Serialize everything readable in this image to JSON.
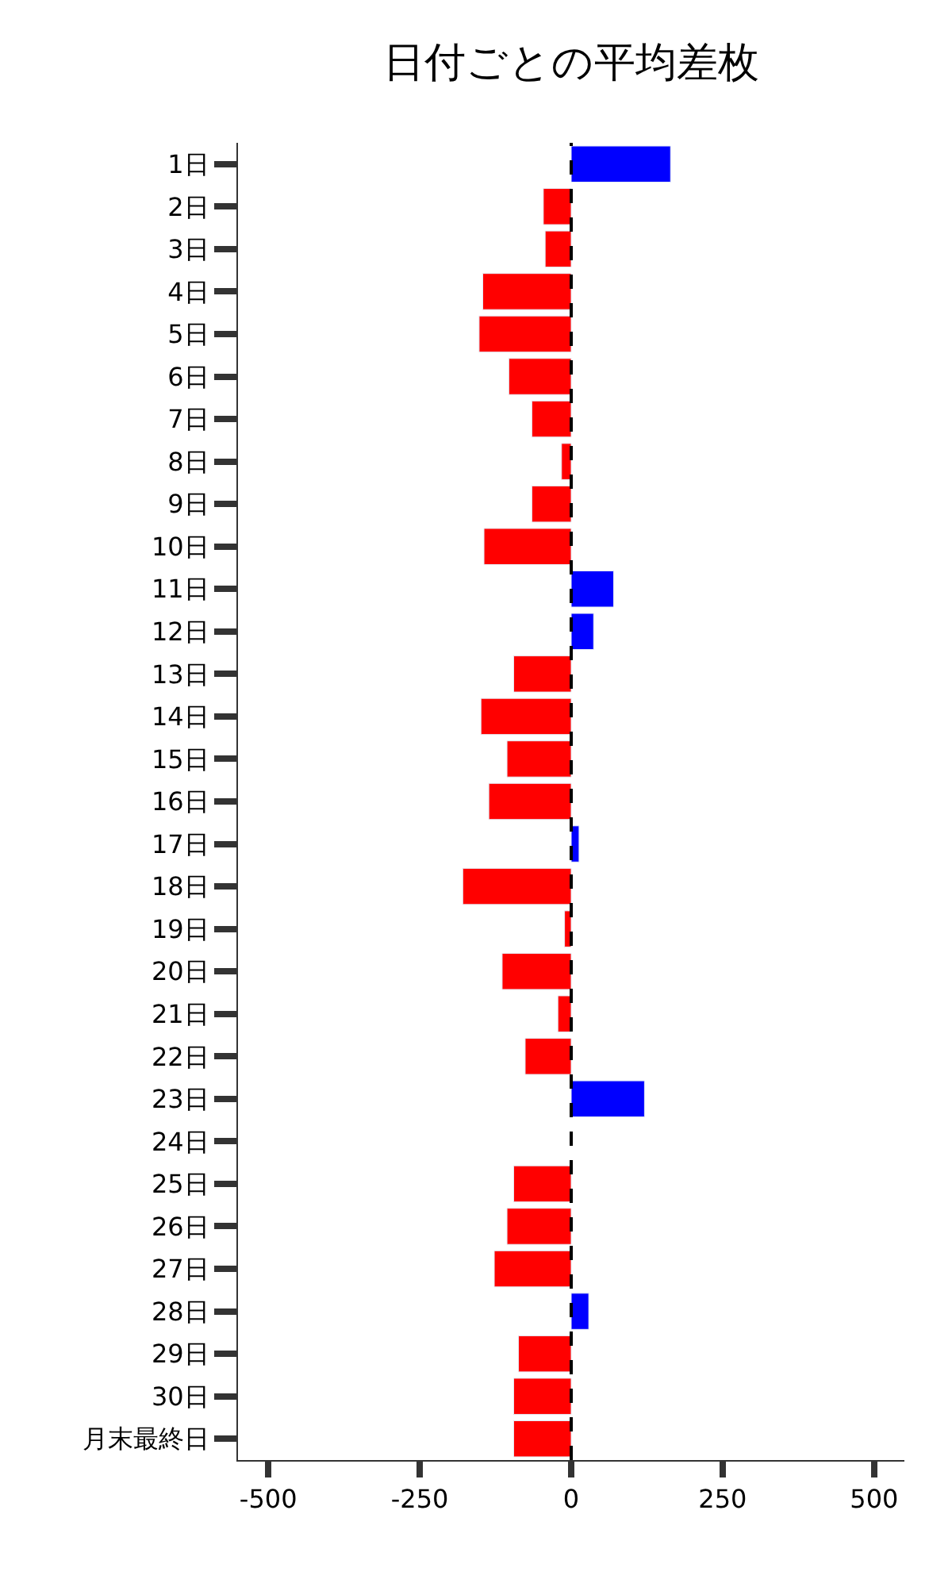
{
  "chart_data": {
    "type": "bar",
    "orientation": "horizontal",
    "title": "日付ごとの平均差枚",
    "categories": [
      "1日",
      "2日",
      "3日",
      "4日",
      "5日",
      "6日",
      "7日",
      "8日",
      "9日",
      "10日",
      "11日",
      "12日",
      "13日",
      "14日",
      "15日",
      "16日",
      "17日",
      "18日",
      "19日",
      "20日",
      "21日",
      "22日",
      "23日",
      "24日",
      "25日",
      "26日",
      "27日",
      "28日",
      "29日",
      "30日",
      "月末最終日"
    ],
    "values": [
      164,
      -46,
      -43,
      -146,
      -152,
      -103,
      -65,
      -16,
      -65,
      -144,
      70,
      37,
      -95,
      -149,
      -106,
      -136,
      13,
      -179,
      -11,
      -114,
      -22,
      -76,
      121,
      null,
      -95,
      -106,
      -127,
      29,
      -87,
      -95,
      -95
    ],
    "colors": [
      "#0000ff",
      "#ff0000",
      "#ff0000",
      "#ff0000",
      "#ff0000",
      "#ff0000",
      "#ff0000",
      "#ff0000",
      "#ff0000",
      "#ff0000",
      "#0000ff",
      "#0000ff",
      "#ff0000",
      "#ff0000",
      "#ff0000",
      "#ff0000",
      "#0000ff",
      "#ff0000",
      "#ff0000",
      "#ff0000",
      "#ff0000",
      "#ff0000",
      "#0000ff",
      "#ff0000",
      "#ff0000",
      "#ff0000",
      "#ff0000",
      "#0000ff",
      "#ff0000",
      "#ff0000",
      "#ff0000"
    ],
    "xlim": [
      -550,
      550
    ],
    "xticks": [
      -500,
      -250,
      0,
      250,
      500
    ],
    "ref_lines": [
      {
        "axis": "x",
        "value": 0,
        "color": "#000000",
        "line_style": "dashed"
      }
    ]
  }
}
